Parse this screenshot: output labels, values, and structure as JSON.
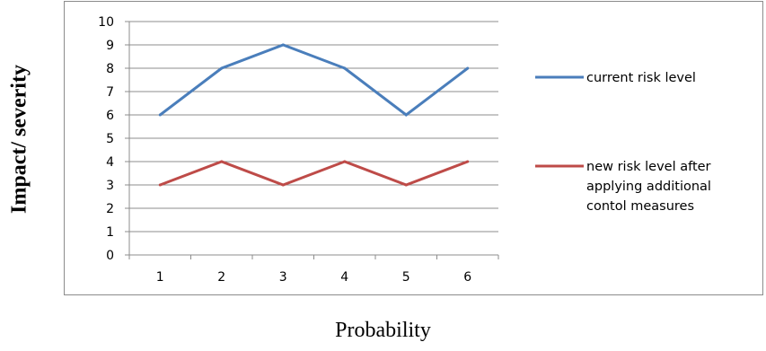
{
  "chart_data": {
    "type": "line",
    "categories": [
      "1",
      "2",
      "3",
      "4",
      "5",
      "6"
    ],
    "series": [
      {
        "name": "current risk level",
        "values": [
          6,
          8,
          9,
          8,
          6,
          8
        ],
        "color": "#4a7ebb"
      },
      {
        "name": "new risk level after applying additional contol measures",
        "values": [
          3,
          4,
          3,
          4,
          3,
          4
        ],
        "color": "#be4b48"
      }
    ],
    "ylim": [
      0,
      10
    ],
    "yticks": [
      0,
      1,
      2,
      3,
      4,
      5,
      6,
      7,
      8,
      9,
      10
    ],
    "xlabel": "Probability",
    "ylabel": "Impact/ severity",
    "grid": "horizontal",
    "legend_position": "right"
  }
}
